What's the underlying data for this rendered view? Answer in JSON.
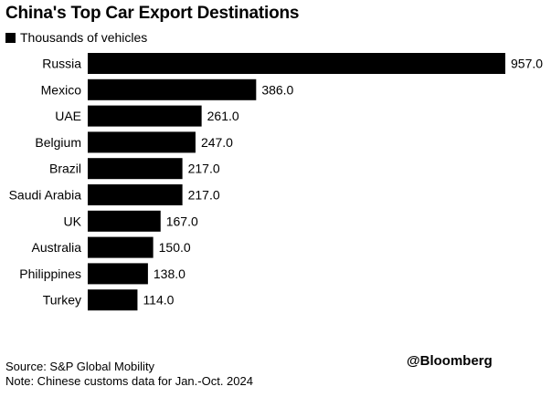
{
  "chart_data": {
    "type": "bar",
    "orientation": "horizontal",
    "title": "China's Top Car Export Destinations",
    "legend": {
      "label": "Thousands of vehicles",
      "placement": "top-left"
    },
    "categories": [
      "Russia",
      "Mexico",
      "UAE",
      "Belgium",
      "Brazil",
      "Saudi Arabia",
      "UK",
      "Australia",
      "Philippines",
      "Turkey"
    ],
    "values": [
      957.0,
      386.0,
      261.0,
      247.0,
      217.0,
      217.0,
      167.0,
      150.0,
      138.0,
      114.0
    ],
    "value_labels": [
      "957.0",
      "386.0",
      "261.0",
      "247.0",
      "217.0",
      "217.0",
      "167.0",
      "150.0",
      "138.0",
      "114.0"
    ],
    "xlim": [
      0,
      957
    ],
    "grid": false,
    "bar_color": "#000000"
  },
  "footer": {
    "source": "Source: S&P Global Mobility",
    "note": "Note: Chinese customs data for Jan.-Oct. 2024",
    "brand": "@Bloomberg"
  }
}
